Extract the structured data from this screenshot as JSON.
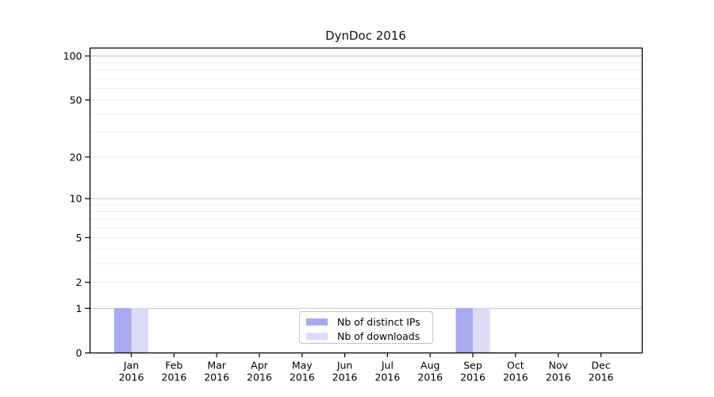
{
  "chart_data": {
    "type": "bar",
    "title": "DynDoc 2016",
    "categories": [
      {
        "month": "Jan",
        "year": "2016"
      },
      {
        "month": "Feb",
        "year": "2016"
      },
      {
        "month": "Mar",
        "year": "2016"
      },
      {
        "month": "Apr",
        "year": "2016"
      },
      {
        "month": "May",
        "year": "2016"
      },
      {
        "month": "Jun",
        "year": "2016"
      },
      {
        "month": "Jul",
        "year": "2016"
      },
      {
        "month": "Aug",
        "year": "2016"
      },
      {
        "month": "Sep",
        "year": "2016"
      },
      {
        "month": "Oct",
        "year": "2016"
      },
      {
        "month": "Nov",
        "year": "2016"
      },
      {
        "month": "Dec",
        "year": "2016"
      }
    ],
    "series": [
      {
        "name": "Nb of distinct IPs",
        "color": "#a9a9f1",
        "values": [
          1,
          0,
          0,
          0,
          0,
          0,
          0,
          0,
          1,
          0,
          0,
          0
        ]
      },
      {
        "name": "Nb of downloads",
        "color": "#dcdcf8",
        "values": [
          1,
          0,
          0,
          0,
          0,
          0,
          0,
          0,
          1,
          0,
          0,
          0
        ]
      }
    ],
    "xlabel": "",
    "ylabel": "",
    "y_axis": {
      "scale": "log10(1+y)",
      "ylim": [
        0,
        113
      ],
      "ticks": [
        0,
        1,
        2,
        5,
        10,
        20,
        50,
        100
      ],
      "major_gridlines": [
        1,
        10,
        100
      ],
      "minor_gridlines": [
        2,
        3,
        4,
        5,
        6,
        7,
        8,
        9,
        20,
        30,
        40,
        50,
        60,
        70,
        80,
        90,
        110
      ]
    },
    "legend": {
      "position": "bottom-center"
    },
    "colors": {
      "grid_minor": "#ededed",
      "grid_major": "#c6c6c6",
      "axis": "#000000",
      "text": "#000000"
    },
    "grid": "on"
  }
}
